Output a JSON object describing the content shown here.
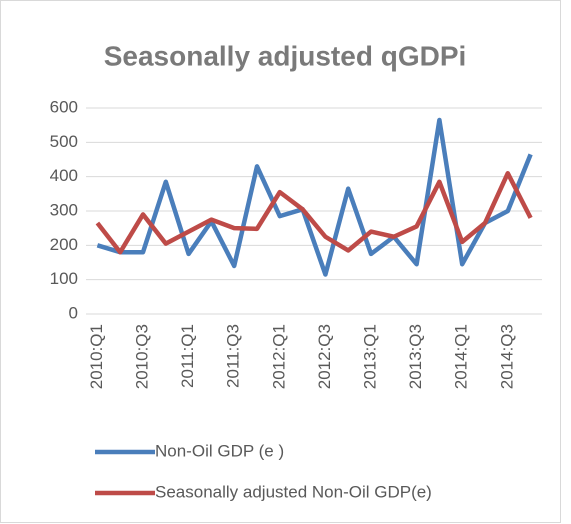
{
  "chart_data": {
    "type": "line",
    "title": "Seasonally adjusted qGDPi",
    "categories": [
      "2010:Q1",
      null,
      "2010:Q3",
      null,
      "2011:Q1",
      null,
      "2011:Q3",
      null,
      "2012:Q1",
      null,
      "2012:Q3",
      null,
      "2013:Q1",
      null,
      "2013:Q3",
      null,
      "2014:Q1",
      null,
      "2014:Q3",
      null
    ],
    "series": [
      {
        "name": "Non-Oil GDP (e )",
        "color": "#4a7ebb",
        "values": [
          200,
          180,
          180,
          385,
          175,
          270,
          140,
          430,
          285,
          305,
          115,
          365,
          175,
          225,
          145,
          565,
          145,
          265,
          300,
          465
        ]
      },
      {
        "name": "Seasonally adjusted Non-Oil GDP(e)",
        "color": "#be4b48",
        "values": [
          265,
          180,
          290,
          205,
          240,
          275,
          250,
          248,
          355,
          305,
          225,
          185,
          240,
          225,
          255,
          385,
          210,
          265,
          410,
          280
        ]
      }
    ],
    "ylim": [
      0,
      600
    ],
    "yticks": [
      0,
      100,
      200,
      300,
      400,
      500,
      600
    ],
    "grid": true,
    "legend": "bottom"
  }
}
